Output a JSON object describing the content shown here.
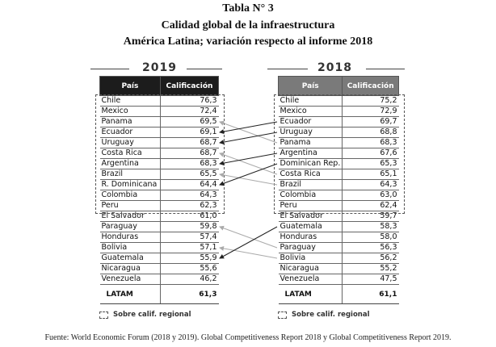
{
  "titles": {
    "line1": "Tabla N° 3",
    "line2": "Calidad global de la infraestructura",
    "line3": "América Latina; variación respecto al informe 2018"
  },
  "left": {
    "year": "2019",
    "col_country": "País",
    "col_score": "Calificación",
    "rows": [
      {
        "country": "Chile",
        "score": "76,3"
      },
      {
        "country": "Mexico",
        "score": "72,4"
      },
      {
        "country": "Panama",
        "score": "69,5"
      },
      {
        "country": "Ecuador",
        "score": "69,1"
      },
      {
        "country": "Uruguay",
        "score": "68,7"
      },
      {
        "country": "Costa Rica",
        "score": "68,7"
      },
      {
        "country": "Argentina",
        "score": "68,3"
      },
      {
        "country": "Brazil",
        "score": "65,5"
      },
      {
        "country": "R. Dominicana",
        "score": "64,4"
      },
      {
        "country": "Colombia",
        "score": "64,3"
      },
      {
        "country": "Peru",
        "score": "62,3"
      },
      {
        "country": "El Salvador",
        "score": "61,0"
      },
      {
        "country": "Paraguay",
        "score": "59,8"
      },
      {
        "country": "Honduras",
        "score": "57,4"
      },
      {
        "country": "Bolivia",
        "score": "57,1"
      },
      {
        "country": "Guatemala",
        "score": "55,9"
      },
      {
        "country": "Nicaragua",
        "score": "55,6"
      },
      {
        "country": "Venezuela",
        "score": "46,2"
      }
    ],
    "latam_label": "LATAM",
    "latam_score": "61,3",
    "legend": "Sobre calif. regional"
  },
  "right": {
    "year": "2018",
    "col_country": "País",
    "col_score": "Calificación",
    "rows": [
      {
        "country": "Chile",
        "score": "75,2"
      },
      {
        "country": "Mexico",
        "score": "72,9"
      },
      {
        "country": "Ecuador",
        "score": "69,7"
      },
      {
        "country": "Uruguay",
        "score": "68,8"
      },
      {
        "country": "Panama",
        "score": "68,3"
      },
      {
        "country": "Argentina",
        "score": "67,6"
      },
      {
        "country": "Dominican Rep.",
        "score": "65,3"
      },
      {
        "country": "Costa Rica",
        "score": "65,1"
      },
      {
        "country": "Brazil",
        "score": "64,3"
      },
      {
        "country": "Colombia",
        "score": "63,0"
      },
      {
        "country": "Peru",
        "score": "62,4"
      },
      {
        "country": "El Salvador",
        "score": "59,7"
      },
      {
        "country": "Guatemala",
        "score": "58,3"
      },
      {
        "country": "Honduras",
        "score": "58,0"
      },
      {
        "country": "Paraguay",
        "score": "56,3"
      },
      {
        "country": "Bolivia",
        "score": "56,2"
      },
      {
        "country": "Nicaragua",
        "score": "55,2"
      },
      {
        "country": "Venezuela",
        "score": "47,5"
      }
    ],
    "latam_label": "LATAM",
    "latam_score": "61,1",
    "legend": "Sobre calif. regional"
  },
  "arrows": [
    {
      "from_2018_row": 4,
      "to_2019_row": 2,
      "color": "#aaaaaa"
    },
    {
      "from_2018_row": 2,
      "to_2019_row": 3,
      "color": "#222222"
    },
    {
      "from_2018_row": 3,
      "to_2019_row": 4,
      "color": "#222222"
    },
    {
      "from_2018_row": 7,
      "to_2019_row": 5,
      "color": "#aaaaaa"
    },
    {
      "from_2018_row": 5,
      "to_2019_row": 6,
      "color": "#222222"
    },
    {
      "from_2018_row": 8,
      "to_2019_row": 7,
      "color": "#aaaaaa"
    },
    {
      "from_2018_row": 6,
      "to_2019_row": 8,
      "color": "#222222"
    },
    {
      "from_2018_row": 14,
      "to_2019_row": 12,
      "color": "#aaaaaa"
    },
    {
      "from_2018_row": 15,
      "to_2019_row": 14,
      "color": "#aaaaaa"
    },
    {
      "from_2018_row": 12,
      "to_2019_row": 15,
      "color": "#222222"
    }
  ],
  "source": "Fuente: World Economic Forum (2018 y 2019). Global Competitiveness Report 2018 y Global Competitiveness Report 2019."
}
